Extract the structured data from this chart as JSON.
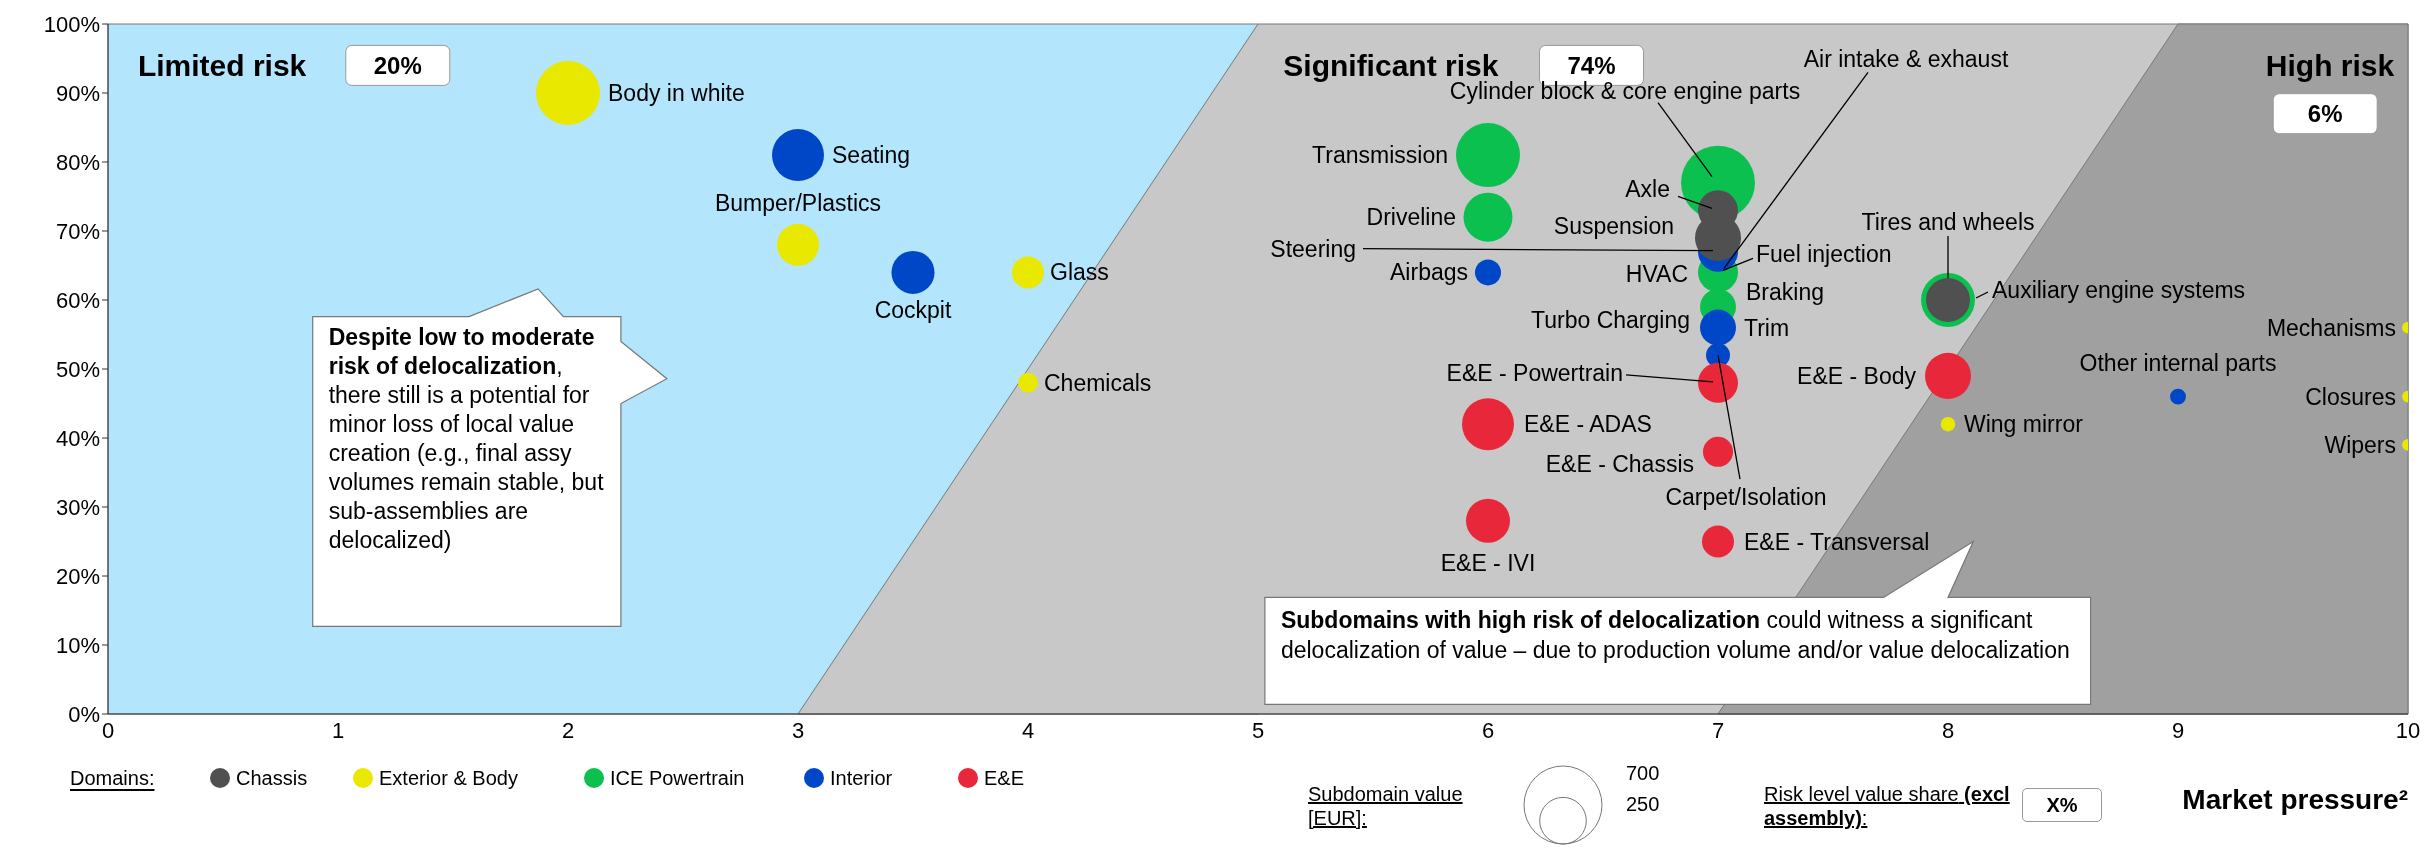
{
  "chart_data": {
    "type": "bubble",
    "xlabel": "Market pressure²",
    "legend_title": "Domains:",
    "legend": "bottom",
    "xlim": [
      0,
      10
    ],
    "xticks": [
      0,
      1,
      2,
      3,
      4,
      5,
      6,
      7,
      8,
      9,
      10
    ],
    "ylim": [
      0,
      100
    ],
    "yticks": [
      {
        "value": 0,
        "label": "0%"
      },
      {
        "value": 10,
        "label": "10%"
      },
      {
        "value": 20,
        "label": "20%"
      },
      {
        "value": 30,
        "label": "30%"
      },
      {
        "value": 40,
        "label": "40%"
      },
      {
        "value": 50,
        "label": "50%"
      },
      {
        "value": 60,
        "label": "60%"
      },
      {
        "value": 70,
        "label": "70%"
      },
      {
        "value": 80,
        "label": "80%"
      },
      {
        "value": 90,
        "label": "90%"
      },
      {
        "value": 100,
        "label": "100%"
      }
    ],
    "size_legend": [
      700,
      250
    ],
    "series": [
      {
        "type": "area",
        "name": "Limited risk",
        "color": "#b3e5fc",
        "x": [
          0,
          5
        ],
        "values": [
          100,
          100
        ]
      },
      {
        "type": "area",
        "name": "Significant risk",
        "color": "#c8c8c8",
        "x": [
          3,
          5,
          10
        ],
        "values": [
          0,
          100,
          100
        ]
      },
      {
        "type": "area",
        "name": "High risk",
        "color": "#a0a0a0",
        "x": [
          7,
          9,
          10
        ],
        "values": [
          0,
          100,
          100
        ]
      },
      {
        "name": "Chassis",
        "color": "#505050",
        "x": [
          7,
          7,
          8
        ],
        "values": [
          73,
          69,
          60
        ],
        "sizes": [
          184,
          244,
          223
        ]
      },
      {
        "name": "Exterior & Body",
        "color": "#e8e800",
        "x": [
          2,
          3,
          4,
          4,
          8,
          10,
          10,
          10
        ],
        "values": [
          90,
          68,
          64,
          48,
          42,
          56,
          46,
          39
        ],
        "sizes": [
          471,
          203,
          118,
          46,
          24,
          16,
          16,
          16
        ]
      },
      {
        "name": "ICE Powertrain",
        "color": "#0cc050",
        "x": [
          6,
          6,
          7,
          7,
          7,
          8
        ],
        "values": [
          81,
          72,
          77,
          64,
          59,
          60
        ],
        "sizes": [
          471,
          276,
          630,
          184,
          149,
          335
        ]
      },
      {
        "name": "Interior",
        "color": "#0047c8",
        "x": [
          3,
          3.5,
          6,
          7,
          7,
          7,
          9
        ],
        "values": [
          81,
          64,
          64,
          67,
          56,
          52,
          46
        ],
        "sizes": [
          311,
          213,
          78,
          184,
          149,
          66,
          29
        ]
      },
      {
        "name": "E&E",
        "color": "#e8283a",
        "x": [
          7,
          6,
          7,
          6,
          7,
          8
        ],
        "values": [
          48,
          42,
          38,
          28,
          25,
          49
        ],
        "sizes": [
          184,
          311,
          104,
          223,
          118,
          244
        ]
      }
    ],
    "annotations": [
      {
        "text": "Body in white",
        "x": 2,
        "y": 90
      },
      {
        "text": "Seating",
        "x": 3,
        "y": 81
      },
      {
        "text": "Bumper/Plastics",
        "x": 3,
        "y": 68
      },
      {
        "text": "Cockpit",
        "x": 3.5,
        "y": 64
      },
      {
        "text": "Glass",
        "x": 4,
        "y": 64
      },
      {
        "text": "Chemicals",
        "x": 4,
        "y": 48
      },
      {
        "text": "Transmission",
        "x": 6,
        "y": 81
      },
      {
        "text": "Driveline",
        "x": 6,
        "y": 72
      },
      {
        "text": "Airbags",
        "x": 6,
        "y": 64
      },
      {
        "text": "Cylinder block & core engine parts",
        "x": 7,
        "y": 77
      },
      {
        "text": "Air intake & exhaust",
        "x": 7,
        "y": 64
      },
      {
        "text": "Axle",
        "x": 7,
        "y": 73
      },
      {
        "text": "Suspension",
        "x": 7,
        "y": 69
      },
      {
        "text": "Steering",
        "x": 7,
        "y": 67
      },
      {
        "text": "Fuel injection",
        "x": 7,
        "y": 64
      },
      {
        "text": "HVAC",
        "x": 7,
        "y": 64
      },
      {
        "text": "Braking",
        "x": 7,
        "y": 64
      },
      {
        "text": "Turbo Charging",
        "x": 7,
        "y": 59
      },
      {
        "text": "Trim",
        "x": 7,
        "y": 56
      },
      {
        "text": "E&E - Powertrain",
        "x": 7,
        "y": 48
      },
      {
        "text": "Carpet/Isolation",
        "x": 7,
        "y": 52
      },
      {
        "text": "E&E - ADAS",
        "x": 6,
        "y": 42
      },
      {
        "text": "E&E - Chassis",
        "x": 7,
        "y": 38
      },
      {
        "text": "E&E - IVI",
        "x": 6,
        "y": 28
      },
      {
        "text": "E&E - Transversal",
        "x": 7,
        "y": 25
      },
      {
        "text": "E&E - Body",
        "x": 8,
        "y": 49
      },
      {
        "text": "Tires and wheels",
        "x": 8,
        "y": 60
      },
      {
        "text": "Auxiliary engine systems",
        "x": 8,
        "y": 60
      },
      {
        "text": "Wing mirror",
        "x": 8,
        "y": 42
      },
      {
        "text": "Other internal parts",
        "x": 9,
        "y": 46
      },
      {
        "text": "Mechanisms",
        "x": 10,
        "y": 56
      },
      {
        "text": "Closures",
        "x": 10,
        "y": 46
      },
      {
        "text": "Wipers",
        "x": 10,
        "y": 39
      },
      "20%",
      "74%",
      "6%",
      "Despite low to moderate risk of delocalization",
      ", there still is a potential for minor loss of local value creation (e.g., final assy volumes remain stable, but sub-assemblies are delocalized)",
      "Subdomains with high risk of delocalization",
      " could witness a significant delocalization of value – due to production volume and/or value delocalization",
      "Subdomain value [EUR]:",
      "Risk level value share",
      "(excl assembly)",
      ":",
      "X%"
    ]
  }
}
